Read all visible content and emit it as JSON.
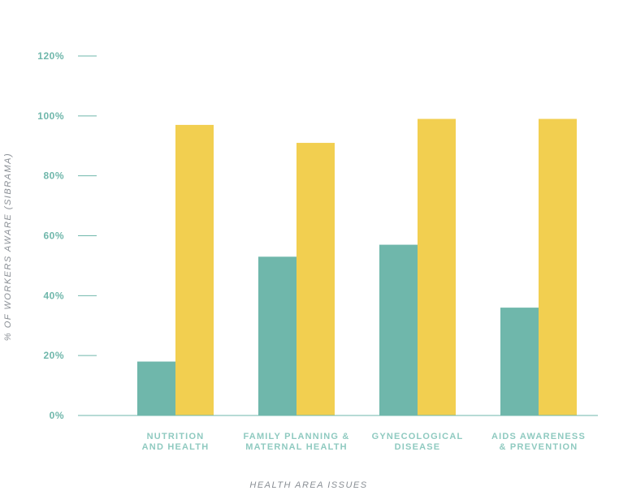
{
  "chart_data": {
    "type": "bar",
    "categories": [
      [
        "NUTRITION",
        "AND HEALTH"
      ],
      [
        "FAMILY PLANNING &",
        "MATERNAL HEALTH"
      ],
      [
        "GYNECOLOGICAL",
        "DISEASE"
      ],
      [
        "AIDS AWARENESS",
        "& PREVENTION"
      ]
    ],
    "series": [
      {
        "values": [
          18,
          53,
          57,
          36
        ]
      },
      {
        "values": [
          97,
          91,
          99,
          99
        ]
      }
    ],
    "xlabel": "HEALTH AREA ISSUES",
    "ylabel": "% OF WORKERS AWARE (SIBRAMA)",
    "ylim": [
      0,
      120
    ],
    "yticks": [
      0,
      20,
      40,
      60,
      80,
      100,
      120
    ],
    "ytick_labels": [
      "0%",
      "20%",
      "40%",
      "60%",
      "80%",
      "100%",
      "120%"
    ],
    "grid": false,
    "legend": "none"
  },
  "colors": {
    "series": [
      "#6fb7ab",
      "#f2cf50"
    ],
    "axis": "#6fb7ab"
  }
}
